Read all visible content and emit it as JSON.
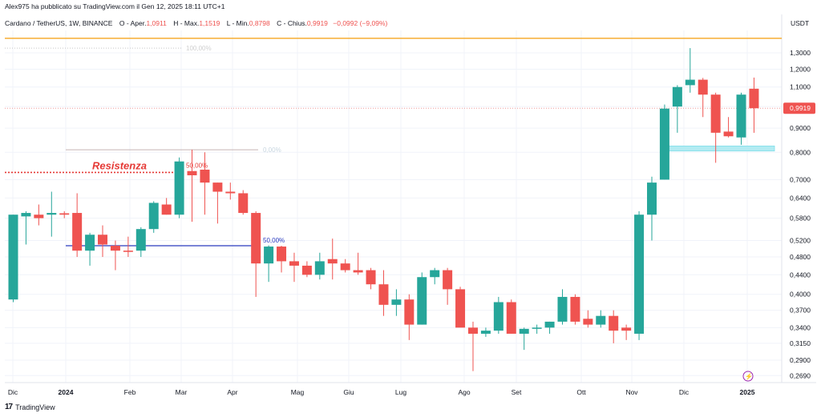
{
  "header": {
    "published": "Alex975 ha pubblicato su TradingView.com il Gen 12, 2025 18:11 UTC+1",
    "symbol": "Cardano / TetherUS, 1W, BINANCE",
    "ohlc": [
      {
        "label": "O",
        "name": "Aper.",
        "value": "1,0911"
      },
      {
        "label": "H",
        "name": "Max.",
        "value": "1,1519"
      },
      {
        "label": "L",
        "name": "Min.",
        "value": "0,8798"
      },
      {
        "label": "C",
        "name": "Chius.",
        "value": "0,9919"
      }
    ],
    "change": "−0,0992 (−9,09%)",
    "currency": "USDT"
  },
  "footer": {
    "brand": "TradingView"
  },
  "colors": {
    "up": "#26a69a",
    "down": "#ef5350",
    "resistance": "#e53935",
    "orange_line": "#f59e0b",
    "fib_blue": "#2a3bbf",
    "support_zone": "#b2ebf2"
  },
  "chart_data": {
    "type": "candlestick",
    "title": "Cardano / TetherUS, 1W, BINANCE",
    "x_tick_labels": [
      "Dic",
      "2024",
      "Feb",
      "Mar",
      "Apr",
      "Mag",
      "Giu",
      "Lug",
      "Ago",
      "Set",
      "Ott",
      "Nov",
      "Dic",
      "2025"
    ],
    "y_tick_labels": [
      "1,3000",
      "1,2000",
      "1,1000",
      "1,0000",
      "0,9000",
      "0,8000",
      "0,7000",
      "0,6400",
      "0,5800",
      "0,5200",
      "0,4800",
      "0,4400",
      "0,4000",
      "0,3700",
      "0,3400",
      "0,3150",
      "0,2900",
      "0,2690"
    ],
    "y_ticks": [
      1.3,
      1.2,
      1.1,
      1.0,
      0.9,
      0.8,
      0.7,
      0.64,
      0.58,
      0.52,
      0.48,
      0.44,
      0.4,
      0.37,
      0.34,
      0.315,
      0.29,
      0.269
    ],
    "y_scale": "log",
    "ylim": [
      0.26,
      1.45
    ],
    "last_price": 0.9919,
    "last_price_label": "0,9919",
    "annotations": [
      {
        "text": "Resistenza",
        "price": 0.725
      },
      {
        "text": "100,00%",
        "price": 1.33
      },
      {
        "text": "0,00%",
        "price": 0.81
      },
      {
        "text": "50,00%",
        "price": 0.73
      },
      {
        "text": "50,00%",
        "price": 0.507
      }
    ],
    "candles": [
      {
        "o": 0.39,
        "h": 0.59,
        "l": 0.385,
        "c": 0.59
      },
      {
        "o": 0.585,
        "h": 0.6,
        "l": 0.51,
        "c": 0.595
      },
      {
        "o": 0.59,
        "h": 0.62,
        "l": 0.56,
        "c": 0.58
      },
      {
        "o": 0.59,
        "h": 0.66,
        "l": 0.53,
        "c": 0.595
      },
      {
        "o": 0.594,
        "h": 0.6,
        "l": 0.58,
        "c": 0.59
      },
      {
        "o": 0.595,
        "h": 0.655,
        "l": 0.48,
        "c": 0.495
      },
      {
        "o": 0.495,
        "h": 0.54,
        "l": 0.46,
        "c": 0.535
      },
      {
        "o": 0.535,
        "h": 0.56,
        "l": 0.48,
        "c": 0.51
      },
      {
        "o": 0.507,
        "h": 0.52,
        "l": 0.45,
        "c": 0.495
      },
      {
        "o": 0.495,
        "h": 0.53,
        "l": 0.48,
        "c": 0.492
      },
      {
        "o": 0.495,
        "h": 0.555,
        "l": 0.48,
        "c": 0.55
      },
      {
        "o": 0.55,
        "h": 0.63,
        "l": 0.54,
        "c": 0.625
      },
      {
        "o": 0.62,
        "h": 0.64,
        "l": 0.59,
        "c": 0.59
      },
      {
        "o": 0.59,
        "h": 0.78,
        "l": 0.58,
        "c": 0.765
      },
      {
        "o": 0.73,
        "h": 0.81,
        "l": 0.57,
        "c": 0.715
      },
      {
        "o": 0.735,
        "h": 0.8,
        "l": 0.59,
        "c": 0.69
      },
      {
        "o": 0.69,
        "h": 0.69,
        "l": 0.565,
        "c": 0.66
      },
      {
        "o": 0.66,
        "h": 0.69,
        "l": 0.635,
        "c": 0.655
      },
      {
        "o": 0.655,
        "h": 0.665,
        "l": 0.59,
        "c": 0.595
      },
      {
        "o": 0.595,
        "h": 0.6,
        "l": 0.395,
        "c": 0.465
      },
      {
        "o": 0.465,
        "h": 0.508,
        "l": 0.425,
        "c": 0.505
      },
      {
        "o": 0.505,
        "h": 0.507,
        "l": 0.445,
        "c": 0.47
      },
      {
        "o": 0.47,
        "h": 0.49,
        "l": 0.425,
        "c": 0.46
      },
      {
        "o": 0.46,
        "h": 0.47,
        "l": 0.435,
        "c": 0.44
      },
      {
        "o": 0.44,
        "h": 0.49,
        "l": 0.43,
        "c": 0.47
      },
      {
        "o": 0.475,
        "h": 0.525,
        "l": 0.43,
        "c": 0.465
      },
      {
        "o": 0.465,
        "h": 0.475,
        "l": 0.445,
        "c": 0.45
      },
      {
        "o": 0.45,
        "h": 0.49,
        "l": 0.44,
        "c": 0.445
      },
      {
        "o": 0.45,
        "h": 0.455,
        "l": 0.41,
        "c": 0.42
      },
      {
        "o": 0.42,
        "h": 0.45,
        "l": 0.36,
        "c": 0.38
      },
      {
        "o": 0.38,
        "h": 0.41,
        "l": 0.36,
        "c": 0.39
      },
      {
        "o": 0.39,
        "h": 0.4,
        "l": 0.32,
        "c": 0.345
      },
      {
        "o": 0.345,
        "h": 0.445,
        "l": 0.345,
        "c": 0.435
      },
      {
        "o": 0.435,
        "h": 0.455,
        "l": 0.42,
        "c": 0.45
      },
      {
        "o": 0.45,
        "h": 0.455,
        "l": 0.38,
        "c": 0.41
      },
      {
        "o": 0.41,
        "h": 0.415,
        "l": 0.35,
        "c": 0.34
      },
      {
        "o": 0.34,
        "h": 0.35,
        "l": 0.275,
        "c": 0.33
      },
      {
        "o": 0.33,
        "h": 0.34,
        "l": 0.325,
        "c": 0.335
      },
      {
        "o": 0.335,
        "h": 0.395,
        "l": 0.33,
        "c": 0.385
      },
      {
        "o": 0.385,
        "h": 0.39,
        "l": 0.33,
        "c": 0.33
      },
      {
        "o": 0.33,
        "h": 0.34,
        "l": 0.305,
        "c": 0.338
      },
      {
        "o": 0.338,
        "h": 0.345,
        "l": 0.33,
        "c": 0.34
      },
      {
        "o": 0.34,
        "h": 0.35,
        "l": 0.33,
        "c": 0.35
      },
      {
        "o": 0.35,
        "h": 0.41,
        "l": 0.345,
        "c": 0.395
      },
      {
        "o": 0.395,
        "h": 0.4,
        "l": 0.345,
        "c": 0.35
      },
      {
        "o": 0.355,
        "h": 0.37,
        "l": 0.34,
        "c": 0.345
      },
      {
        "o": 0.345,
        "h": 0.37,
        "l": 0.34,
        "c": 0.36
      },
      {
        "o": 0.36,
        "h": 0.37,
        "l": 0.315,
        "c": 0.335
      },
      {
        "o": 0.34,
        "h": 0.345,
        "l": 0.32,
        "c": 0.335
      },
      {
        "o": 0.33,
        "h": 0.6,
        "l": 0.32,
        "c": 0.59
      },
      {
        "o": 0.59,
        "h": 0.71,
        "l": 0.52,
        "c": 0.69
      },
      {
        "o": 0.7,
        "h": 1.01,
        "l": 0.7,
        "c": 0.99
      },
      {
        "o": 1.0,
        "h": 1.11,
        "l": 0.88,
        "c": 1.1
      },
      {
        "o": 1.11,
        "h": 1.33,
        "l": 1.07,
        "c": 1.14
      },
      {
        "o": 1.14,
        "h": 1.15,
        "l": 0.95,
        "c": 1.06
      },
      {
        "o": 1.06,
        "h": 1.07,
        "l": 0.76,
        "c": 0.88
      },
      {
        "o": 0.885,
        "h": 0.95,
        "l": 0.86,
        "c": 0.865
      },
      {
        "o": 0.86,
        "h": 1.07,
        "l": 0.83,
        "c": 1.06
      },
      {
        "o": 1.0911,
        "h": 1.1519,
        "l": 0.8798,
        "c": 0.9919
      }
    ]
  }
}
